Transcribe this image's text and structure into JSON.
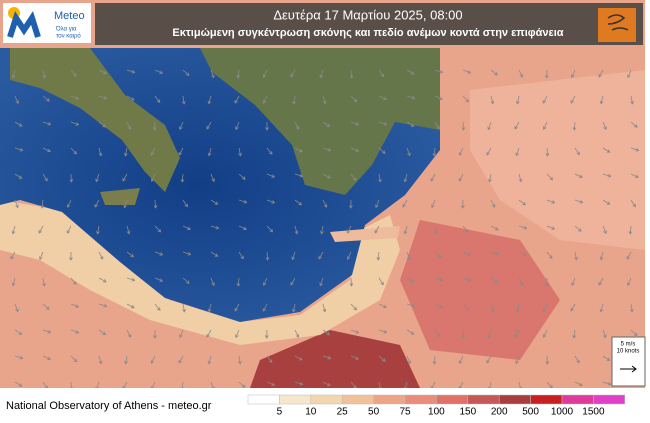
{
  "logo": {
    "name": "Meteo",
    "tagline_lines": [
      "Όλα για",
      "τον καιρό"
    ]
  },
  "header": {
    "title": "Δευτέρα 17 Μαρτίου  2025, 08:00",
    "subtitle": "Εκτιμώμενη συγκέντρωση σκόνης και πεδίο ανέμων κοντά στην επιφάνεια"
  },
  "footer": "National Observatory of Athens - meteo.gr",
  "wind_scale": {
    "lines": [
      "5 m/s",
      "10 knots"
    ]
  },
  "legend": {
    "colors": [
      "#ffffff",
      "#f6e7cc",
      "#f3d6ad",
      "#f1c19a",
      "#eea585",
      "#e98c78",
      "#e07068",
      "#c85858",
      "#a83e3e",
      "#c82020",
      "#e03a9a",
      "#e040c8"
    ],
    "ticks": [
      5,
      10,
      25,
      50,
      75,
      100,
      150,
      200,
      500,
      1000,
      1500
    ]
  }
}
